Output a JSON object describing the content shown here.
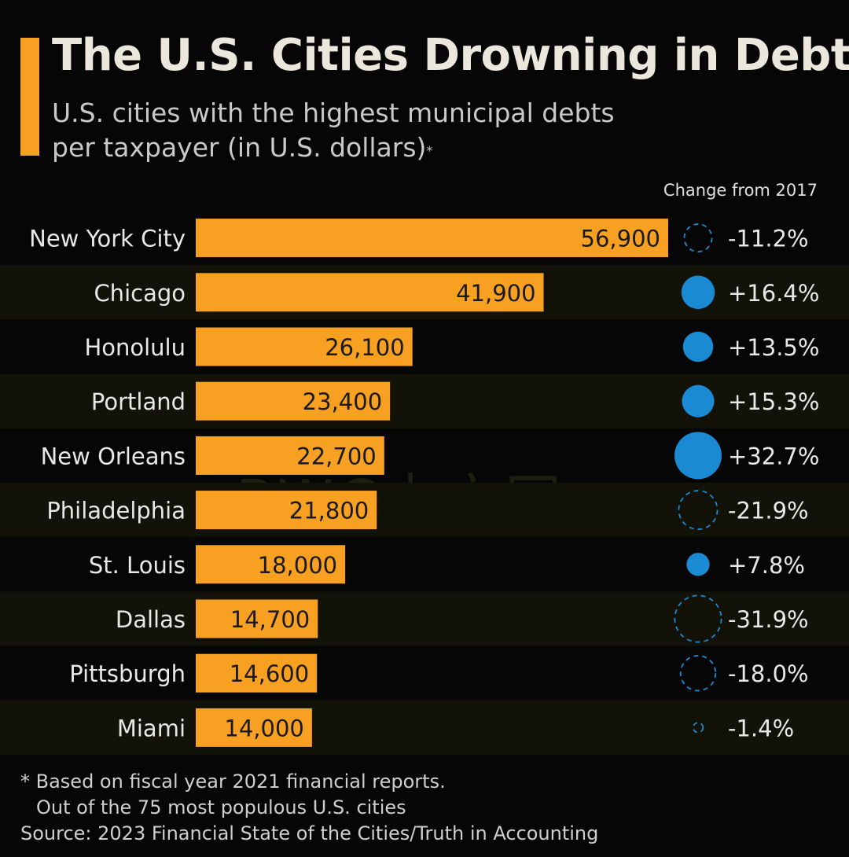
{
  "header": {
    "title": "The U.S. Cities Drowning in Debt",
    "subtitle_line1": "U.S. cities with the highest municipal debts",
    "subtitle_line2": "per taxpayer (in U.S. dollars)",
    "subtitle_marker": "*"
  },
  "change_header": "Change from 2017",
  "watermark": "BWC中文网",
  "footnote": {
    "line1": "* Based on fiscal year 2021 financial reports.",
    "line2": "Out of the 75 most populous U.S. cities",
    "source": "Source: 2023 Financial State of the Cities/Truth in Accounting"
  },
  "colors": {
    "bar": "#f7a021",
    "increase": "#1a8ad3",
    "decrease": "#1a8ad3",
    "row_stripe": "#121208"
  },
  "chart_data": {
    "type": "bar",
    "orientation": "horizontal",
    "title": "The U.S. Cities Drowning in Debt",
    "subtitle": "U.S. cities with the highest municipal debts per taxpayer (in U.S. dollars)*",
    "categories": [
      "New York City",
      "Chicago",
      "Honolulu",
      "Portland",
      "New Orleans",
      "Philadelphia",
      "St. Louis",
      "Dallas",
      "Pittsburgh",
      "Miami"
    ],
    "values": [
      56900,
      41900,
      26100,
      23400,
      22700,
      21800,
      18000,
      14700,
      14600,
      14000
    ],
    "value_labels": [
      "56,900",
      "41,900",
      "26,100",
      "23,400",
      "22,700",
      "21,800",
      "18,000",
      "14,700",
      "14,600",
      "14,000"
    ],
    "change_from_2017": [
      -11.2,
      16.4,
      13.5,
      15.3,
      32.7,
      -21.9,
      7.8,
      -31.9,
      -18.0,
      -1.4
    ],
    "change_labels": [
      "-11.2%",
      "+16.4%",
      "+13.5%",
      "+15.3%",
      "+32.7%",
      "-21.9%",
      "+7.8%",
      "-31.9%",
      "-18.0%",
      "-1.4%"
    ],
    "change_encoding": "bubble size proportional to change; filled = increase, dashed outline = decrease",
    "xlim": [
      0,
      56900
    ],
    "grid": false
  }
}
